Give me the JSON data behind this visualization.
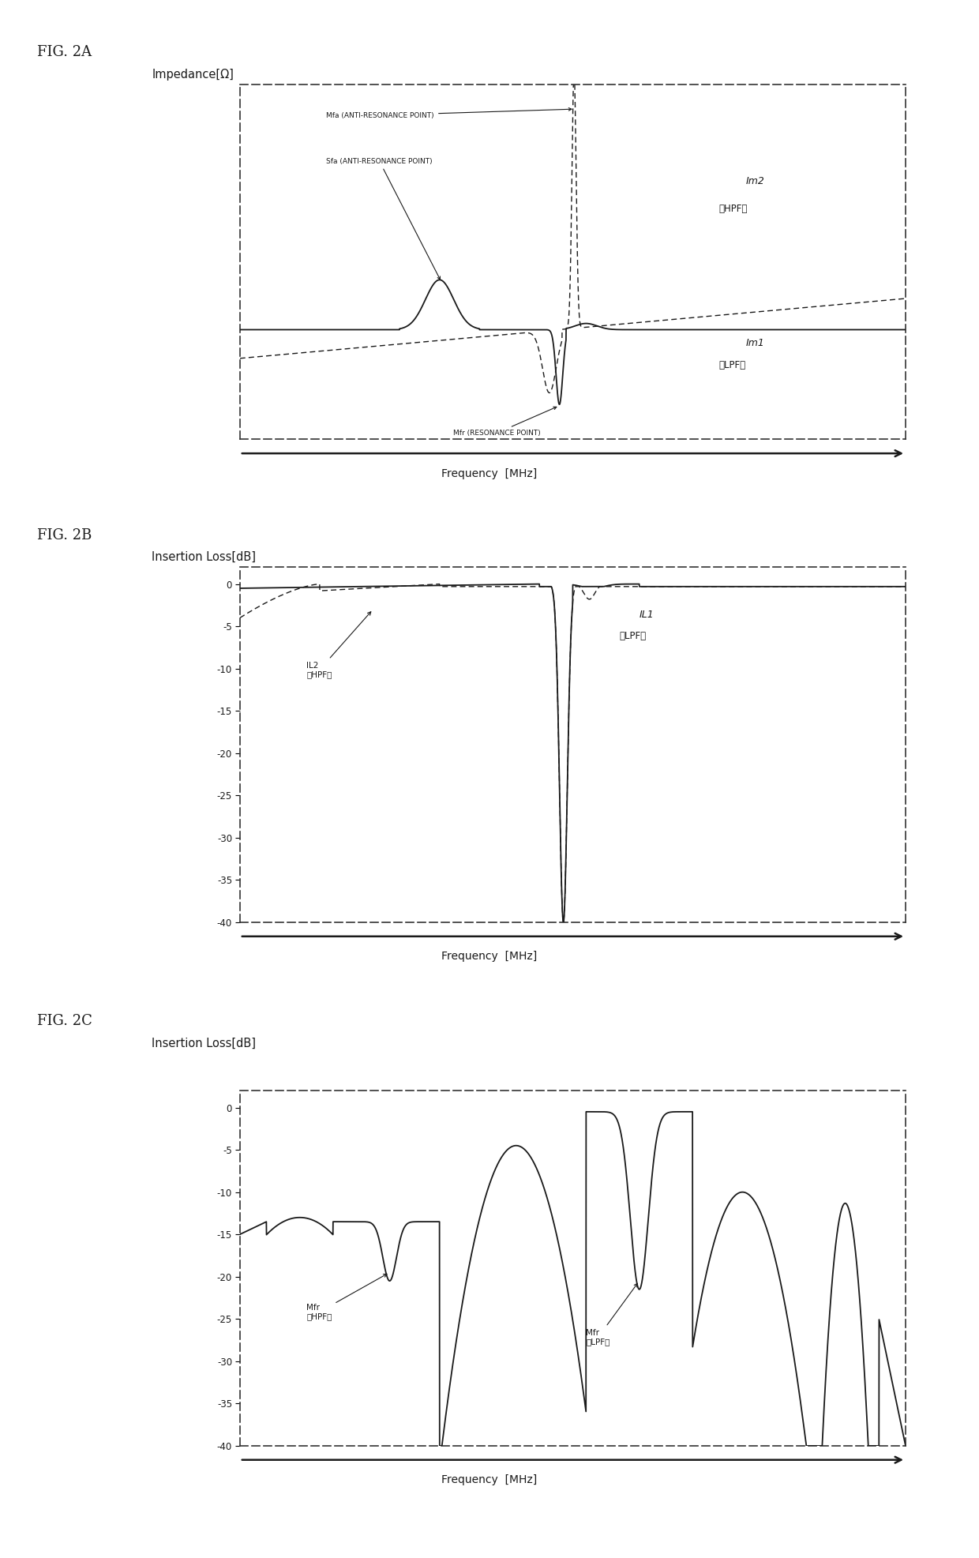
{
  "fig2a_title": "FIG. 2A",
  "fig2b_title": "FIG. 2B",
  "fig2c_title": "FIG. 2C",
  "fig2a_ylabel": "Impedance[Ω]",
  "fig2b_ylabel": "Insertion Loss[dB]",
  "fig2c_ylabel": "Insertion Loss[dB]",
  "xlabel": "Frequency  [MHz]",
  "bg_color": "#ffffff",
  "line_color": "#1a1a1a",
  "fig2b_yticks": [
    0,
    -5,
    -10,
    -15,
    -20,
    -25,
    -30,
    -35,
    -40
  ],
  "fig2c_yticks": [
    0,
    -5,
    -10,
    -15,
    -20,
    -25,
    -30,
    -35,
    -40
  ],
  "fig2a_ylim": [
    -0.55,
    2.3
  ],
  "fig2b_ylim": [
    -40,
    2
  ],
  "fig2c_ylim": [
    -40,
    2
  ]
}
